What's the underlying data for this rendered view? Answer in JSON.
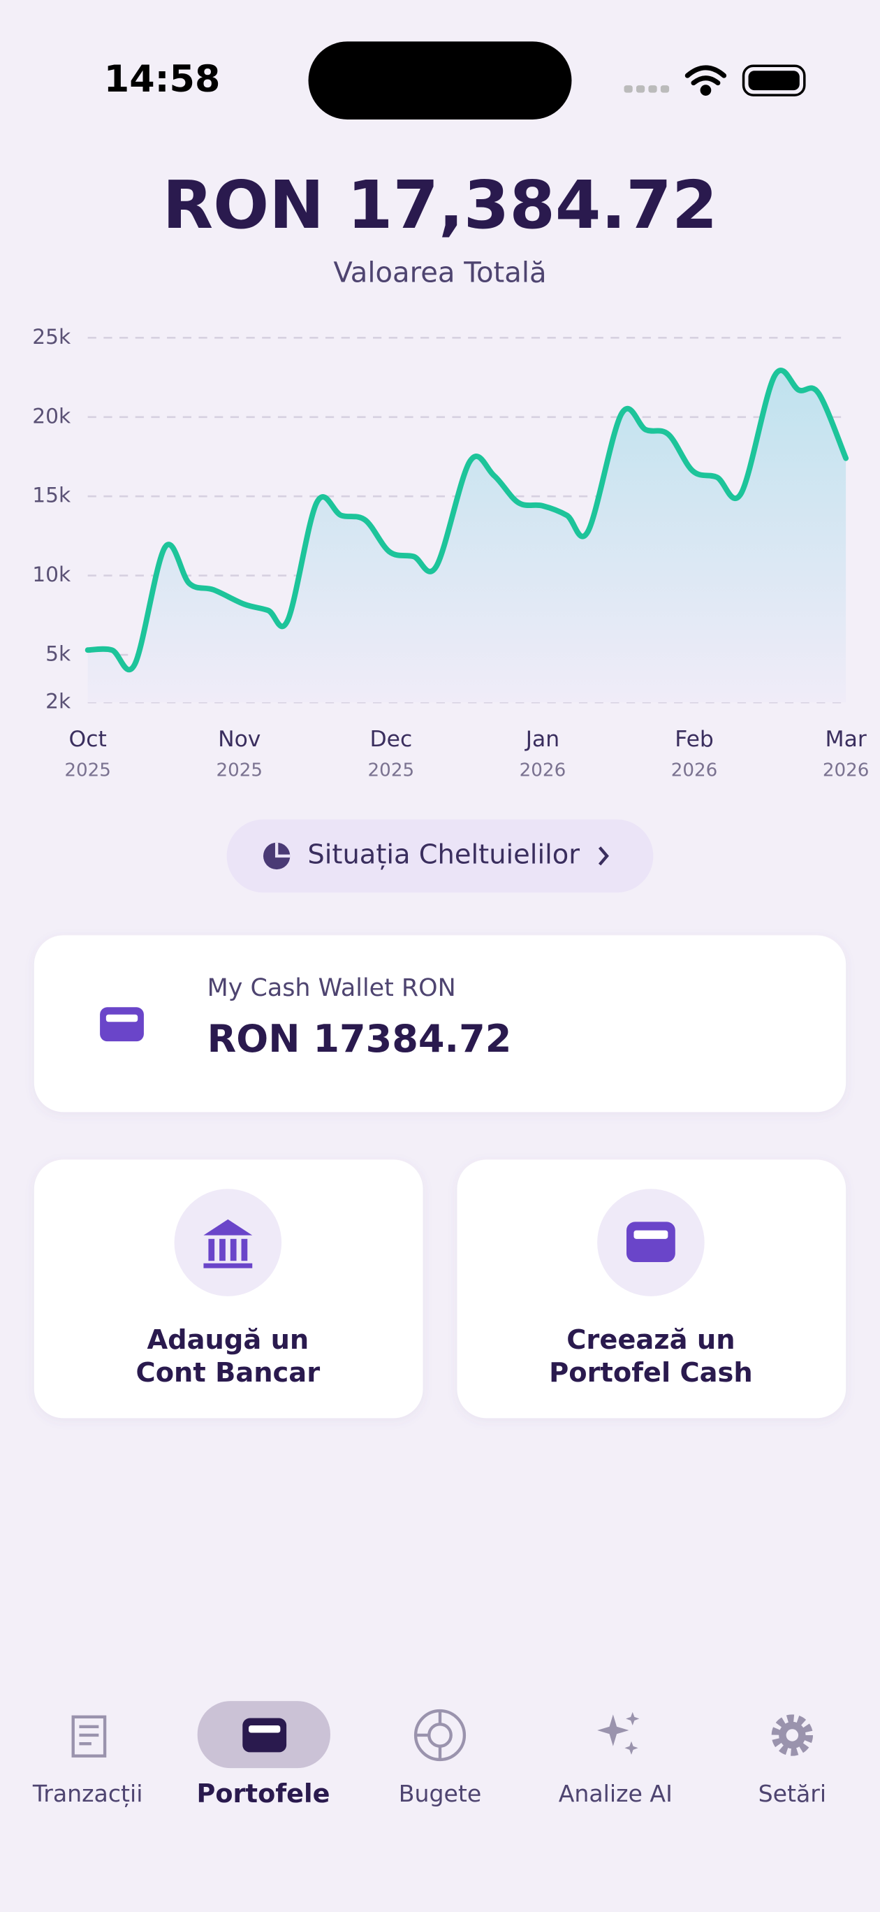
{
  "status_bar": {
    "time": "14:58"
  },
  "header": {
    "amount": "RON 17,384.72",
    "label": "Valoarea Totală"
  },
  "chart_data": {
    "type": "line",
    "color": "#1dc49a",
    "grid": true,
    "x": [
      0,
      0.16,
      0.31,
      0.51,
      0.67,
      0.83,
      1.03,
      1.19,
      1.32,
      1.51,
      1.67,
      1.83,
      1.99,
      2.15,
      2.3,
      2.52,
      2.68,
      2.84,
      3.0,
      3.16,
      3.3,
      3.52,
      3.68,
      3.83,
      3.99,
      4.15,
      4.31,
      4.53,
      4.69,
      4.82,
      5.0
    ],
    "values": [
      5300,
      5300,
      4400,
      11800,
      9500,
      9100,
      8200,
      7800,
      7200,
      14600,
      13800,
      13500,
      11500,
      11200,
      10600,
      17200,
      16300,
      14600,
      14400,
      13800,
      12800,
      20200,
      19200,
      18900,
      16600,
      16200,
      15200,
      22600,
      21700,
      21500,
      17400
    ],
    "xlim": [
      0,
      5
    ],
    "xticks": [
      {
        "value": 0,
        "label": "Oct"
      },
      {
        "value": 1,
        "label": "Nov"
      },
      {
        "value": 2,
        "label": "Dec"
      },
      {
        "value": 3,
        "label": "Jan"
      },
      {
        "value": 4,
        "label": "Feb"
      },
      {
        "value": 5,
        "label": "Mar"
      }
    ],
    "xtick_years": [
      "2025",
      "2025",
      "2025",
      "2026",
      "2026",
      "2026"
    ],
    "ylim": [
      2000,
      25000
    ],
    "yticks": [
      {
        "value": 2000,
        "label": "2k"
      },
      {
        "value": 5000,
        "label": "5k"
      },
      {
        "value": 10000,
        "label": "10k"
      },
      {
        "value": 15000,
        "label": "15k"
      },
      {
        "value": 20000,
        "label": "20k"
      },
      {
        "value": 25000,
        "label": "25k"
      }
    ]
  },
  "expense_button": "Situația Cheltuielilor",
  "wallet": {
    "name": "My Cash Wallet RON",
    "balance": "RON 17384.72"
  },
  "actions": [
    {
      "lines": [
        "Adaugă un",
        "Cont Bancar"
      ]
    },
    {
      "lines": [
        "Creează un",
        "Portofel Cash"
      ]
    }
  ],
  "tabs": [
    "Tranzacții",
    "Portofele",
    "Bugete",
    "Analize AI",
    "Setări"
  ]
}
